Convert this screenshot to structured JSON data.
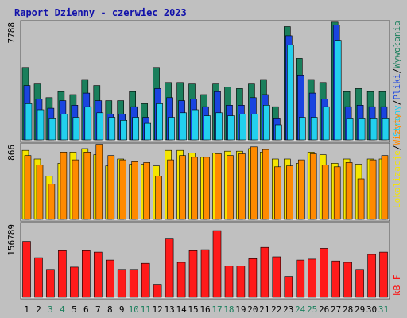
{
  "chart_data": {
    "type": "bar",
    "title": "Raport Dzienny -  czerwiec 2023",
    "categories": [
      "1",
      "2",
      "3",
      "4",
      "5",
      "6",
      "7",
      "8",
      "9",
      "10",
      "11",
      "12",
      "13",
      "14",
      "15",
      "16",
      "17",
      "18",
      "19",
      "20",
      "21",
      "22",
      "23",
      "24",
      "25",
      "26",
      "27",
      "28",
      "29",
      "30",
      "31"
    ],
    "weekend_days": [
      "3",
      "4",
      "10",
      "11",
      "17",
      "18",
      "24",
      "25",
      "31"
    ],
    "panels": [
      {
        "name": "traffic",
        "ymax_label": "7788",
        "ymax": 7788,
        "series": [
          {
            "name": "Wywołania",
            "values": [
              4800,
              3700,
              2800,
              3200,
              3000,
              4000,
              3600,
              2600,
              2600,
              3200,
              2400,
              4800,
              3800,
              3800,
              3700,
              3000,
              3700,
              3500,
              3400,
              3700,
              4000,
              2200,
              7500,
              5400,
              4000,
              3800,
              7800,
              3200,
              3400,
              3200,
              3200
            ]
          },
          {
            "name": "Pliki",
            "values": [
              3600,
              2700,
              2100,
              2600,
              2300,
              3100,
              2600,
              1700,
              1700,
              2200,
              1500,
              3400,
              2800,
              2600,
              2700,
              2200,
              3200,
              2300,
              2300,
              2800,
              3000,
              1400,
              6900,
              4300,
              3100,
              2700,
              7600,
              2200,
              2300,
              2200,
              2200
            ]
          },
          {
            "name": "Strony",
            "values": [
              2400,
              2000,
              1400,
              1700,
              1500,
              2200,
              1800,
              1500,
              1300,
              1500,
              1100,
              2400,
              1500,
              1800,
              2000,
              1600,
              1800,
              1600,
              1700,
              1700,
              2300,
              1000,
              6300,
              1500,
              1500,
              2200,
              6600,
              1400,
              1400,
              1400,
              1400
            ]
          }
        ]
      },
      {
        "name": "visits",
        "ymax_label": "866",
        "ymax": 866,
        "series": [
          {
            "name": "Lokalizacje",
            "values": [
              800,
              700,
              500,
              650,
              780,
              820,
              750,
              620,
              700,
              640,
              640,
              620,
              800,
              800,
              770,
              720,
              770,
              790,
              790,
              820,
              780,
              700,
              700,
              650,
              780,
              750,
              650,
              700,
              640,
              700,
              700
            ]
          },
          {
            "name": "Wizyty",
            "values": [
              740,
              630,
              410,
              780,
              690,
              780,
              870,
              740,
              690,
              670,
              660,
              500,
              690,
              740,
              720,
              720,
              760,
              740,
              760,
              840,
              810,
              610,
              620,
              690,
              760,
              630,
              610,
              660,
              470,
              690,
              740
            ]
          }
        ]
      },
      {
        "name": "kb",
        "ymax_label": "156789",
        "ymax": 156789,
        "series": [
          {
            "name": "kB F",
            "values": [
              120000,
              85000,
              60000,
              100000,
              65000,
              100000,
              97000,
              80000,
              60000,
              60000,
              73000,
              28000,
              125000,
              75000,
              100000,
              102000,
              143000,
              67000,
              67000,
              83000,
              107000,
              87000,
              45000,
              80000,
              82000,
              105000,
              78000,
              75000,
              60000,
              92000,
              97000
            ]
          }
        ]
      }
    ],
    "legend_top": [
      {
        "label": "Wywołania",
        "color": "#1a7f5c"
      },
      {
        "label": "Pliki",
        "color": "#1a44e0"
      },
      {
        "label": "Strony",
        "color": "#22d0ee"
      }
    ],
    "legend_mid": [
      {
        "label": "Wizyty",
        "color": "#ff8a00"
      },
      {
        "label": "Lokalizacje",
        "color": "#f5e500"
      }
    ],
    "legend_bot": [
      {
        "label": "kB F",
        "color": "#ff0000"
      }
    ],
    "colors": {
      "hits": "#1a7f5c",
      "files": "#1a44e0",
      "pages": "#22d0ee",
      "visits": "#ff8a00",
      "sites": "#f5e500",
      "kbytes": "#ff1a1a",
      "title": "#1111aa",
      "weekday_label": "#000000",
      "weekend_label": "#1a7f5c",
      "plot_bg": "#c0c0c0",
      "page_bg": "#c0c0c0"
    }
  }
}
